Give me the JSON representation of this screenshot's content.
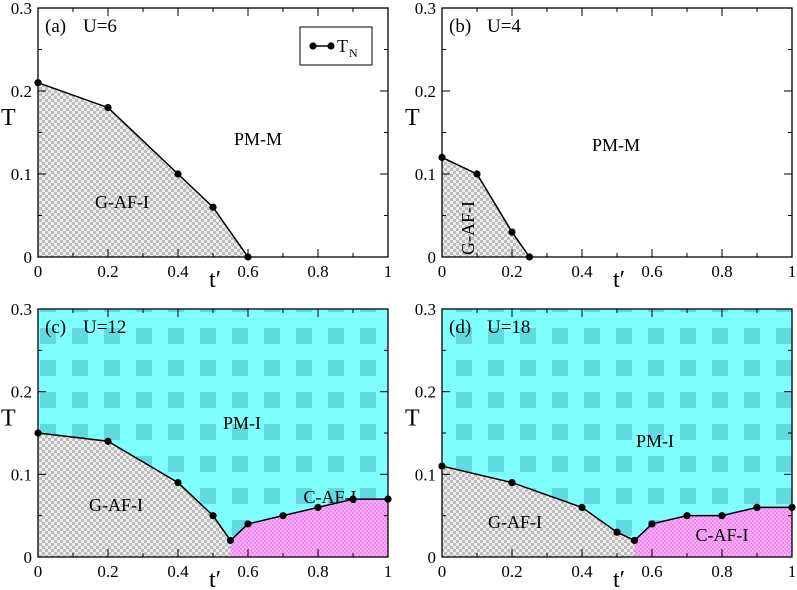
{
  "colors": {
    "pm_insulator": "#80ffff",
    "c_af_insulator": "#ff99ff",
    "g_af_insulator": "#d9d9d9",
    "line": "#000000"
  },
  "legend": {
    "label": "T",
    "subscript": "N"
  },
  "chart_data": [
    {
      "type": "line",
      "panel": "(a)",
      "title": "U=6",
      "xlabel": "t′",
      "ylabel": "T",
      "xlim": [
        0,
        1
      ],
      "ylim": [
        0,
        0.3
      ],
      "xticks": [
        "0",
        "0.2",
        "0.4",
        "0.6",
        "0.8",
        "1"
      ],
      "yticks": [
        "0",
        "0.1",
        "0.2",
        "0.3"
      ],
      "series": [
        {
          "name": "T_N",
          "x": [
            0,
            0.2,
            0.4,
            0.5,
            0.6
          ],
          "y": [
            0.21,
            0.18,
            0.1,
            0.06,
            0.0
          ]
        }
      ],
      "regions": [
        {
          "label": "PM-M"
        },
        {
          "label": "G-AF-I"
        }
      ]
    },
    {
      "type": "line",
      "panel": "(b)",
      "title": "U=4",
      "xlabel": "t′",
      "ylabel": "T",
      "xlim": [
        0,
        1
      ],
      "ylim": [
        0,
        0.3
      ],
      "xticks": [
        "0",
        "0.2",
        "0.4",
        "0.6",
        "0.8",
        "1"
      ],
      "yticks": [
        "0",
        "0.1",
        "0.2",
        "0.3"
      ],
      "series": [
        {
          "name": "T_N",
          "x": [
            0,
            0.1,
            0.2,
            0.25
          ],
          "y": [
            0.12,
            0.1,
            0.03,
            0.0
          ]
        }
      ],
      "regions": [
        {
          "label": "PM-M"
        },
        {
          "label": "G-AF-I"
        }
      ]
    },
    {
      "type": "line",
      "panel": "(c)",
      "title": "U=12",
      "xlabel": "t′",
      "ylabel": "T",
      "xlim": [
        0,
        1
      ],
      "ylim": [
        0,
        0.3
      ],
      "xticks": [
        "0",
        "0.2",
        "0.4",
        "0.6",
        "0.8",
        "1"
      ],
      "yticks": [
        "0",
        "0.1",
        "0.2",
        "0.3"
      ],
      "series": [
        {
          "name": "T_N",
          "x": [
            0,
            0.2,
            0.4,
            0.5,
            0.55,
            0.6,
            0.7,
            0.8,
            0.9,
            1.0
          ],
          "y": [
            0.15,
            0.14,
            0.09,
            0.05,
            0.02,
            0.04,
            0.05,
            0.06,
            0.07,
            0.07
          ]
        }
      ],
      "regions": [
        {
          "label": "PM-I"
        },
        {
          "label": "G-AF-I"
        },
        {
          "label": "C-AF-I"
        }
      ]
    },
    {
      "type": "line",
      "panel": "(d)",
      "title": "U=18",
      "xlabel": "t′",
      "ylabel": "T",
      "xlim": [
        0,
        1
      ],
      "ylim": [
        0,
        0.3
      ],
      "xticks": [
        "0",
        "0.2",
        "0.4",
        "0.6",
        "0.8",
        "1"
      ],
      "yticks": [
        "0",
        "0.1",
        "0.2",
        "0.3"
      ],
      "series": [
        {
          "name": "T_N",
          "x": [
            0,
            0.2,
            0.4,
            0.5,
            0.55,
            0.6,
            0.7,
            0.8,
            0.9,
            1.0
          ],
          "y": [
            0.11,
            0.09,
            0.06,
            0.03,
            0.02,
            0.04,
            0.05,
            0.05,
            0.06,
            0.06
          ]
        }
      ],
      "regions": [
        {
          "label": "PM-I"
        },
        {
          "label": "G-AF-I"
        },
        {
          "label": "C-AF-I"
        }
      ]
    }
  ]
}
